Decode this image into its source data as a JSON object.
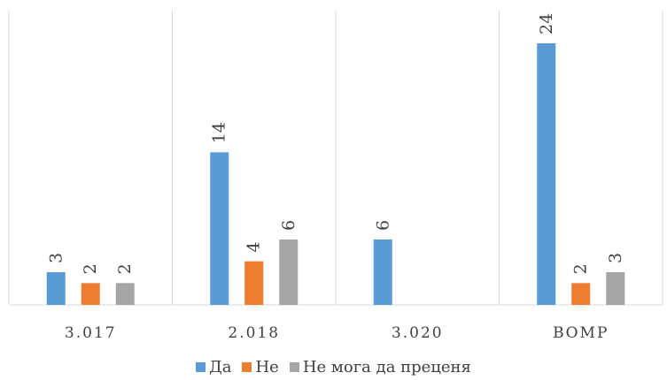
{
  "chart_data": {
    "type": "bar",
    "categories": [
      "3.017",
      "2.018",
      "3.020",
      "ВОМР"
    ],
    "series": [
      {
        "name": "Да",
        "values": [
          3,
          14,
          6,
          24
        ],
        "color": "#5b9bd5"
      },
      {
        "name": "Не",
        "values": [
          2,
          4,
          null,
          2
        ],
        "color": "#ed7d31"
      },
      {
        "name": "Не мога да преценя",
        "values": [
          2,
          6,
          null,
          3
        ],
        "color": "#a5a5a5"
      }
    ],
    "title": "",
    "xlabel": "",
    "ylabel": "",
    "ylim": [
      0,
      27
    ],
    "data_labels": true,
    "data_label_rotation": "vertical",
    "grid": "vertical separators",
    "legend_position": "bottom",
    "colors": {
      "axis": "#d9d9d9",
      "text": "#3f3f3f"
    }
  }
}
